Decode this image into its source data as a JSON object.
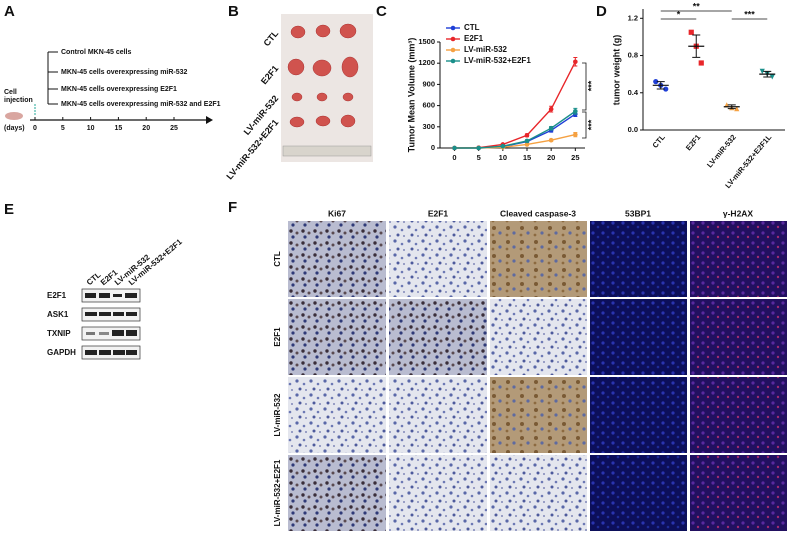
{
  "panel_labels": [
    "A",
    "B",
    "C",
    "D",
    "E",
    "F"
  ],
  "panel_a": {
    "injection_label": [
      "Cell",
      "injection"
    ],
    "axis_unit": "(days)",
    "ticks": [
      0,
      5,
      10,
      15,
      20,
      25
    ],
    "groups": [
      "Control MKN-45 cells",
      "MKN-45 cells overexpressing miR-532",
      "MKN-45 cells overexpressing E2F1",
      "MKN-45 cells overexpressing miR-532 and E2F1"
    ]
  },
  "panel_b": {
    "rows": [
      "CTL",
      "E2F1",
      "LV-miR-532",
      "LV-miR-532+E2F1"
    ]
  },
  "chart_data": [
    {
      "type": "line",
      "ylabel": "Tumor Mean Volume (mm³)",
      "x": [
        0,
        5,
        10,
        15,
        20,
        25
      ],
      "xlim": [
        -3,
        27
      ],
      "xticks": [
        0,
        5,
        10,
        15,
        20,
        25
      ],
      "ylim": [
        0,
        1500
      ],
      "yticks": [
        0,
        300,
        600,
        900,
        1200,
        1500
      ],
      "legend": "upper left",
      "series": [
        {
          "name": "CTL",
          "color": "#1f3fd6",
          "values": [
            0,
            0,
            20,
            90,
            250,
            480
          ],
          "errors": [
            0,
            0,
            8,
            15,
            25,
            35
          ]
        },
        {
          "name": "E2F1",
          "color": "#e8262a",
          "values": [
            0,
            5,
            50,
            180,
            550,
            1220
          ],
          "errors": [
            0,
            0,
            10,
            20,
            40,
            60
          ]
        },
        {
          "name": "LV-miR-532",
          "color": "#f5a142",
          "values": [
            0,
            0,
            10,
            50,
            110,
            190
          ],
          "errors": [
            0,
            0,
            5,
            10,
            15,
            30
          ]
        },
        {
          "name": "LV-miR-532+E2F1",
          "color": "#1a8f8a",
          "values": [
            0,
            0,
            25,
            100,
            280,
            520
          ],
          "errors": [
            0,
            0,
            8,
            15,
            25,
            40
          ]
        }
      ],
      "annotations": [
        "***",
        "***"
      ]
    },
    {
      "type": "dot",
      "ylabel": "tumor weight (g)",
      "categories": [
        "CTL",
        "E2F1",
        "LV-miR-532",
        "LV-miR-532+E2F1L"
      ],
      "ylim": [
        0,
        1.3
      ],
      "yticks": [
        {
          "value": 0,
          "label": "0.0"
        },
        {
          "value": 0.4,
          "label": "0.4"
        },
        {
          "value": 0.8,
          "label": "0.8"
        },
        {
          "value": 1.2,
          "label": "1.2"
        }
      ],
      "groups": [
        {
          "color": "#1f3fd6",
          "marker": "circle",
          "values": [
            0.52,
            0.48,
            0.44
          ],
          "mean": 0.48,
          "error": 0.04
        },
        {
          "color": "#e8262a",
          "marker": "square",
          "values": [
            1.05,
            0.9,
            0.72
          ],
          "mean": 0.9,
          "error": 0.12
        },
        {
          "color": "#f5a142",
          "marker": "triangle",
          "values": [
            0.27,
            0.24,
            0.23
          ],
          "mean": 0.25,
          "error": 0.02
        },
        {
          "color": "#1a8f8a",
          "marker": "triangle-down",
          "values": [
            0.63,
            0.6,
            0.57
          ],
          "mean": 0.6,
          "error": 0.03
        }
      ],
      "annotations": [
        "**",
        "*",
        "***"
      ]
    }
  ],
  "panel_e": {
    "lanes": [
      "CTL",
      "E2F1",
      "LV-miR-532",
      "LV-miR-532+E2F1"
    ],
    "proteins": [
      "E2F1",
      "ASK1",
      "TXNIP",
      "GAPDH"
    ]
  },
  "panel_f": {
    "columns": [
      "Ki67",
      "E2F1",
      "Cleaved caspase-3",
      "53BP1",
      "γ-H2AX"
    ],
    "rows": [
      "CTL",
      "E2F1",
      "LV-miR-532",
      "LV-miR-532+E2F1"
    ]
  }
}
